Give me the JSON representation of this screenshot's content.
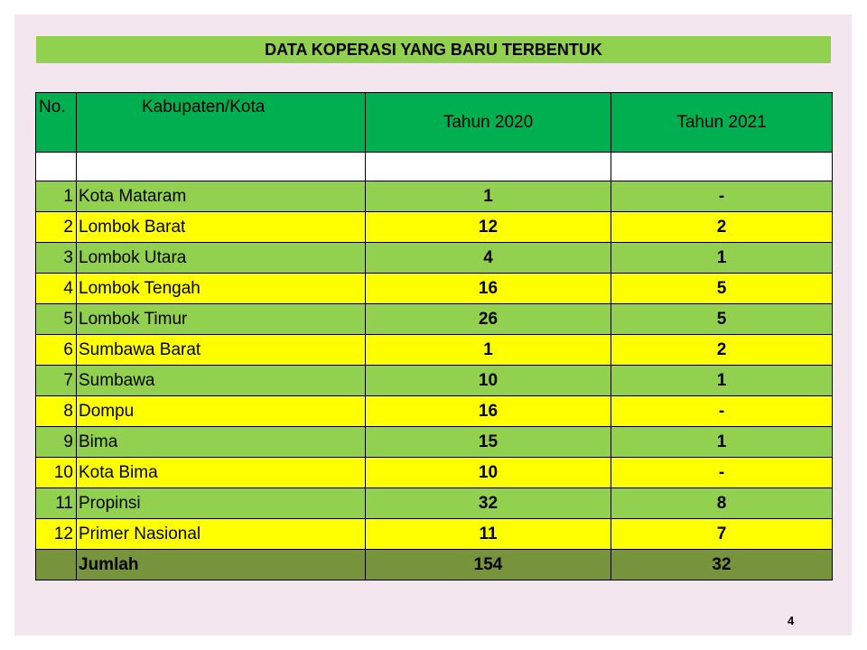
{
  "title": "DATA KOPERASI YANG BARU TERBENTUK",
  "headers": {
    "no": "No.",
    "kab": "Kabupaten/Kota",
    "y2020": "Tahun 2020",
    "y2021": "Tahun 2021"
  },
  "rows": [
    {
      "no": "1",
      "name": "Kota Mataram",
      "y2020": "1",
      "y2021": "-"
    },
    {
      "no": "2",
      "name": "Lombok Barat",
      "y2020": "12",
      "y2021": "2"
    },
    {
      "no": "3",
      "name": "Lombok Utara",
      "y2020": "4",
      "y2021": "1"
    },
    {
      "no": "4",
      "name": "Lombok Tengah",
      "y2020": "16",
      "y2021": "5"
    },
    {
      "no": "5",
      "name": "Lombok Timur",
      "y2020": "26",
      "y2021": "5"
    },
    {
      "no": "6",
      "name": "Sumbawa Barat",
      "y2020": "1",
      "y2021": "2"
    },
    {
      "no": "7",
      "name": "Sumbawa",
      "y2020": "10",
      "y2021": "1"
    },
    {
      "no": "8",
      "name": "Dompu",
      "y2020": "16",
      "y2021": "-"
    },
    {
      "no": "9",
      "name": "Bima",
      "y2020": "15",
      "y2021": "1"
    },
    {
      "no": "10",
      "name": "Kota Bima",
      "y2020": "10",
      "y2021": "-"
    },
    {
      "no": "11",
      "name": "Propinsi",
      "y2020": "32",
      "y2021": "8"
    },
    {
      "no": "12",
      "name": "Primer Nasional",
      "y2020": "11",
      "y2021": "7"
    }
  ],
  "total": {
    "label": "Jumlah",
    "y2020": "154",
    "y2021": "32"
  },
  "page_number": "4",
  "colors": {
    "title_bg": "#92d050",
    "header_bg": "#00b050",
    "row_green": "#92d050",
    "row_yellow": "#ffff00",
    "total_bg": "#77933c",
    "slide_bg": "#f3e6ee"
  }
}
